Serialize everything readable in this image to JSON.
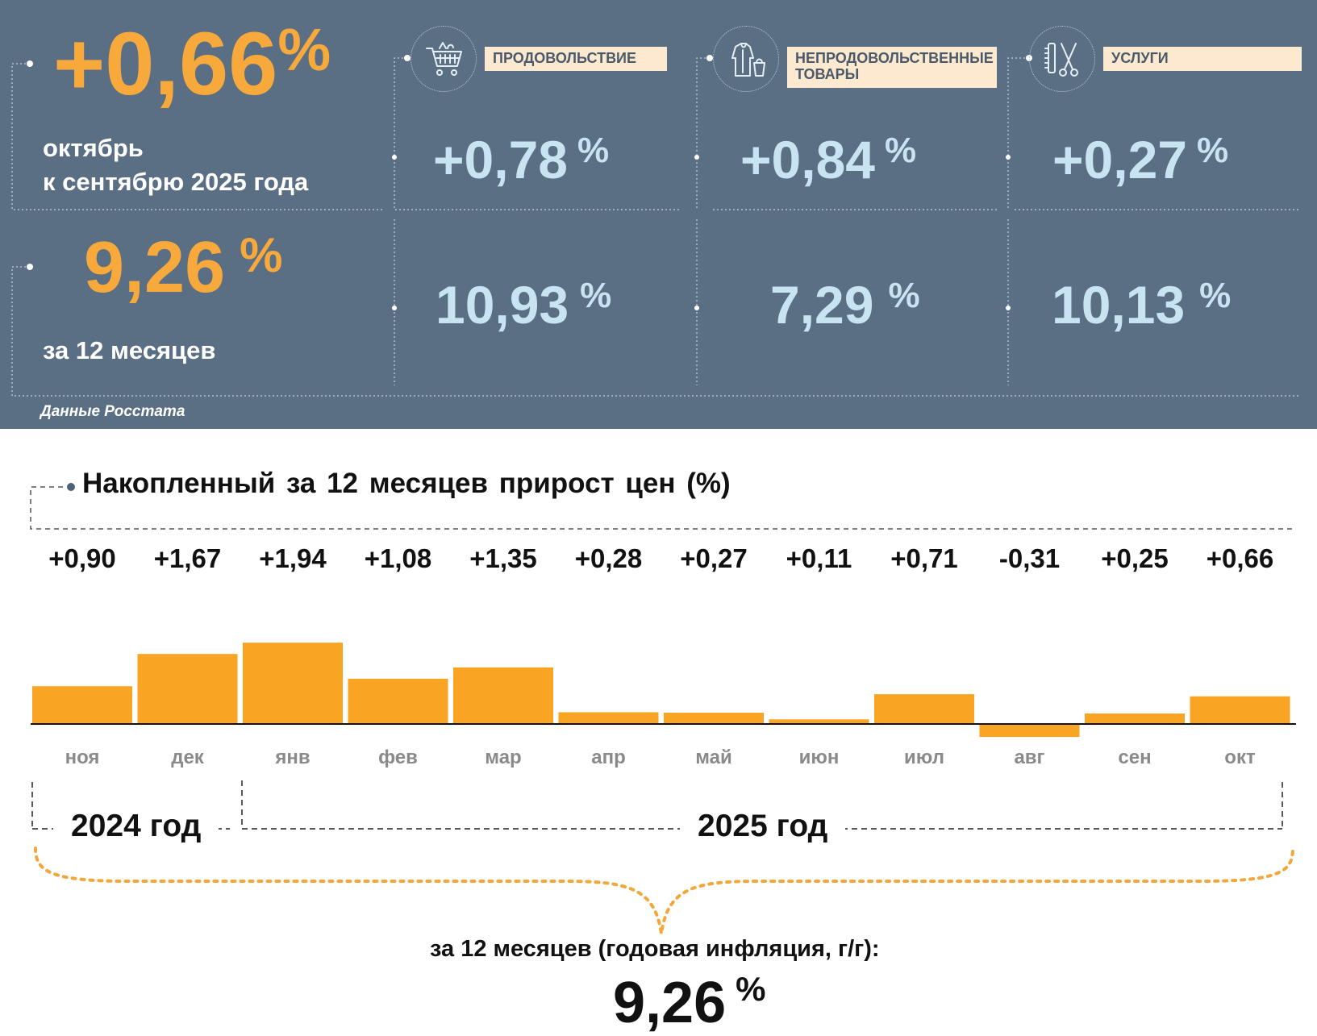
{
  "summary": {
    "monthly_value": "+0,66",
    "monthly_unit": "%",
    "monthly_caption_line1": "октябрь",
    "monthly_caption_line2": "к сентябрю 2025 года",
    "annual_value": "9,26",
    "annual_unit": "%",
    "annual_caption": "за 12 месяцев",
    "source": "Данные Росстата"
  },
  "categories": [
    {
      "label": "ПРОДОВОЛЬСТВИЕ",
      "icon": "shopping-cart-icon",
      "monthly": "+0,78",
      "annual": "10,93",
      "unit": "%"
    },
    {
      "label": "НЕПРОДОВОЛЬСТВЕННЫЕ ТОВАРЫ",
      "label_line1": "НЕПРОДОВОЛЬСТВЕННЫЕ",
      "label_line2": "ТОВАРЫ",
      "icon": "clothing-icon",
      "monthly": "+0,84",
      "annual": "7,29",
      "unit": "%"
    },
    {
      "label": "УСЛУГИ",
      "icon": "scissors-comb-icon",
      "monthly": "+0,27",
      "annual": "10,13",
      "unit": "%"
    }
  ],
  "chart_data": {
    "type": "bar",
    "title": "Накопленный за 12 месяцев прирост цен (%)",
    "categories": [
      "ноя",
      "дек",
      "янв",
      "фев",
      "мар",
      "апр",
      "май",
      "июн",
      "июл",
      "авг",
      "сен",
      "окт"
    ],
    "values": [
      0.9,
      1.67,
      1.94,
      1.08,
      1.35,
      0.28,
      0.27,
      0.11,
      0.71,
      -0.31,
      0.25,
      0.66
    ],
    "value_labels": [
      "+0,90",
      "+1,67",
      "+1,94",
      "+1,08",
      "+1,35",
      "+0,28",
      "+0,27",
      "+0,11",
      "+0,71",
      "-0,31",
      "+0,25",
      "+0,66"
    ],
    "bar_color": "#f9a423",
    "year_labels": [
      "2024 год",
      "2025 год"
    ],
    "summary_label": "за 12 месяцев (годовая инфляция, г/г):",
    "summary_value": "9,26",
    "summary_unit": "%"
  }
}
